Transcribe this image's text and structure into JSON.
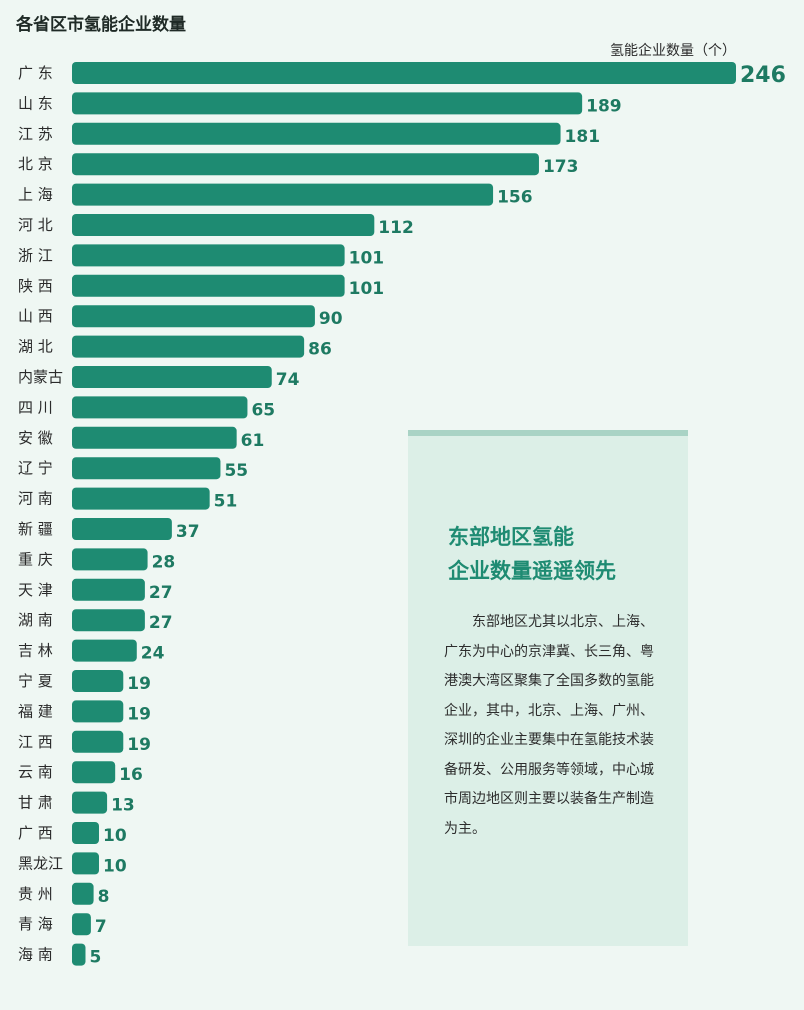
{
  "chart_data": {
    "type": "bar",
    "orientation": "horizontal",
    "title": "各省区市氢能企业数量",
    "unit_label": "氢能企业数量（个）",
    "categories": [
      "广 东",
      "山 东",
      "江 苏",
      "北 京",
      "上 海",
      "河 北",
      "浙 江",
      "陕 西",
      "山 西",
      "湖 北",
      "内蒙古",
      "四 川",
      "安 徽",
      "辽 宁",
      "河 南",
      "新 疆",
      "重 庆",
      "天 津",
      "湖 南",
      "吉 林",
      "宁 夏",
      "福 建",
      "江 西",
      "云 南",
      "甘 肃",
      "广 西",
      "黑龙江",
      "贵 州",
      "青 海",
      "海 南"
    ],
    "values": [
      246,
      189,
      181,
      173,
      156,
      112,
      101,
      101,
      90,
      86,
      74,
      65,
      61,
      55,
      51,
      37,
      28,
      27,
      27,
      24,
      19,
      19,
      19,
      16,
      13,
      10,
      10,
      8,
      7,
      5
    ],
    "xlim": [
      0,
      246
    ],
    "colors": {
      "bar": "#1e8b72",
      "value_label": "#1e7a62"
    }
  },
  "note": {
    "title": "东部地区氢能\n企业数量遥遥领先",
    "body": "东部地区尤其以北京、上海、广东为中心的京津冀、长三角、粤港澳大湾区聚集了全国多数的氢能企业，其中，北京、上海、广州、深圳的企业主要集中在氢能技术装备研发、公用服务等领域，中心城市周边地区则主要以装备生产制造为主。"
  }
}
